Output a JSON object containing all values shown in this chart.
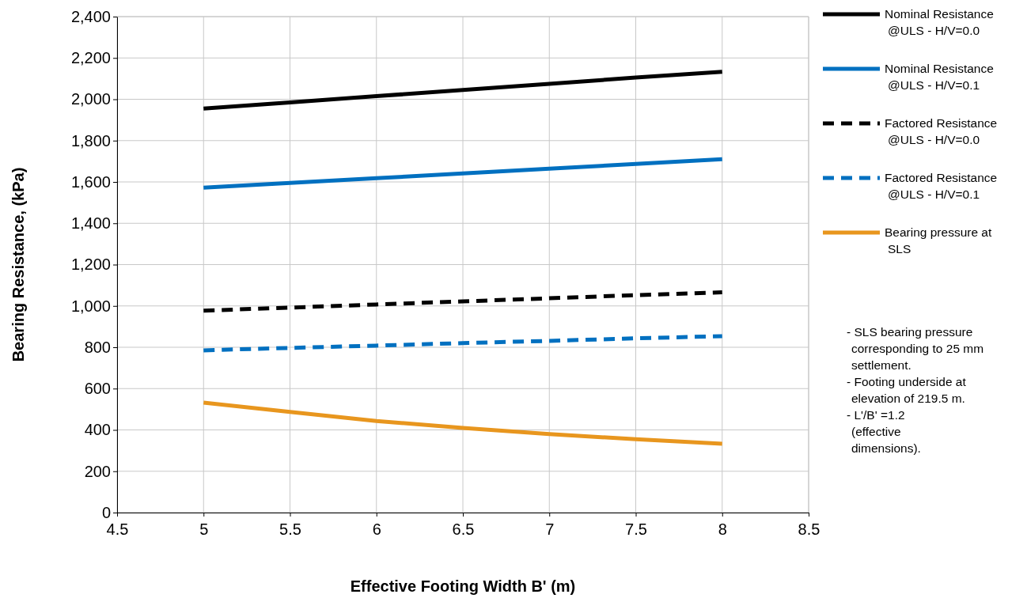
{
  "chart_data": {
    "type": "line",
    "xlabel": "Effective Footing Width B' (m)",
    "ylabel": "Bearing Resistance, (kPa)",
    "x": [
      5,
      5.5,
      6,
      6.5,
      7,
      7.5,
      8
    ],
    "xlim": [
      4.5,
      8.5
    ],
    "xticks": [
      4.5,
      5,
      5.5,
      6,
      6.5,
      7,
      7.5,
      8,
      8.5
    ],
    "ylim": [
      0,
      2400
    ],
    "yticks": [
      {
        "value": 0,
        "label": "0"
      },
      {
        "value": 200,
        "label": "200"
      },
      {
        "value": 400,
        "label": "400"
      },
      {
        "value": 600,
        "label": "600"
      },
      {
        "value": 800,
        "label": "800"
      },
      {
        "value": 1000,
        "label": "1,000"
      },
      {
        "value": 1200,
        "label": "1,200"
      },
      {
        "value": 1400,
        "label": "1,400"
      },
      {
        "value": 1600,
        "label": "1,600"
      },
      {
        "value": 1800,
        "label": "1,800"
      },
      {
        "value": 2000,
        "label": "2,000"
      },
      {
        "value": 2200,
        "label": "2,200"
      },
      {
        "value": 2400,
        "label": "2,400"
      }
    ],
    "grid": true,
    "legend": "right",
    "marker": "none",
    "series": [
      {
        "name": "Nominal Resistance @ULS - H/V=0.0",
        "color": "#000000",
        "line_style": "solid",
        "values": [
          1955,
          1985,
          2015,
          2045,
          2075,
          2105,
          2133
        ]
      },
      {
        "name": "Nominal Resistance @ULS - H/V=0.1",
        "color": "#0070c0",
        "line_style": "solid",
        "values": [
          1572,
          1595,
          1618,
          1641,
          1664,
          1687,
          1710
        ]
      },
      {
        "name": "Factored Resistance @ULS - H/V=0.0",
        "color": "#000000",
        "line_style": "dashed",
        "values": [
          977,
          992,
          1007,
          1022,
          1037,
          1052,
          1066
        ]
      },
      {
        "name": "Factored Resistance @ULS - H/V=0.1",
        "color": "#0070c0",
        "line_style": "dashed",
        "values": [
          785,
          797,
          808,
          820,
          831,
          843,
          854
        ]
      },
      {
        "name": "Bearing pressure at SLS",
        "color": "#e8961e",
        "line_style": "solid",
        "values": [
          532,
          487,
          443,
          410,
          380,
          355,
          333
        ]
      }
    ],
    "annotations": [
      "- SLS bearing pressure corresponding to 25 mm settlement.",
      "- Footing underside at elevation of 219.5 m.",
      "- L'/B' =1.2 (effective dimensions)."
    ]
  }
}
